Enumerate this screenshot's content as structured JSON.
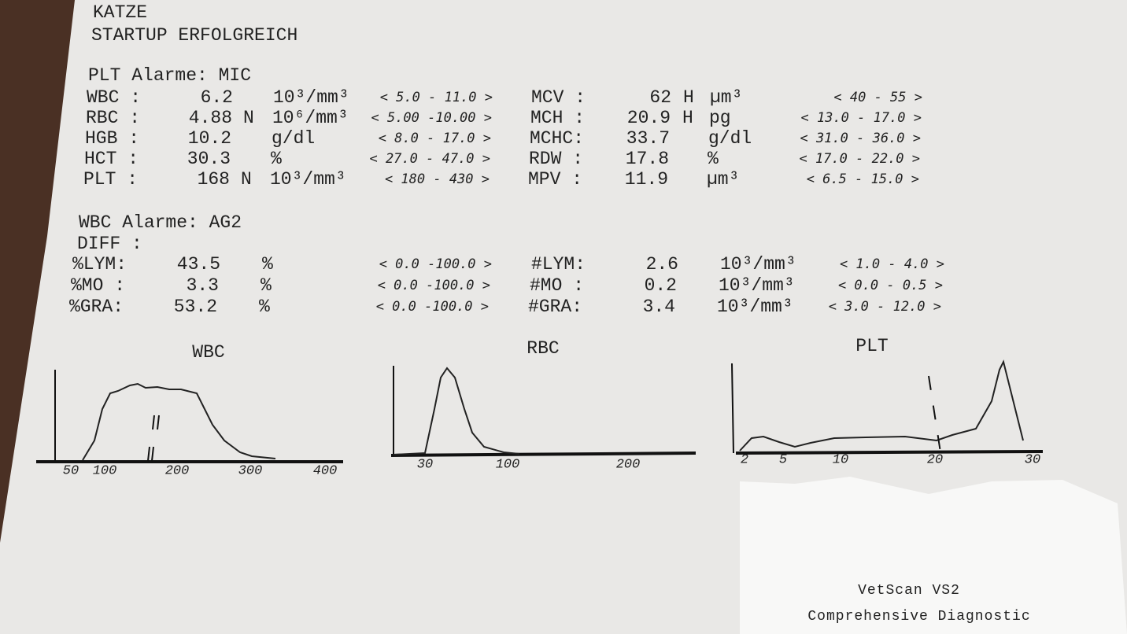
{
  "header": {
    "species": "KATZE",
    "status": "STARTUP ERFOLGREICH"
  },
  "plt_section": {
    "alarm": "PLT Alarme: MIC",
    "rows": [
      {
        "left": {
          "name": "WBC :",
          "value": "6.2",
          "unit": "10³/mm³",
          "range": "< 5.0 - 11.0 >"
        },
        "right": {
          "name": "MCV :",
          "value": "62",
          "flag": "H",
          "unit": "µm³",
          "range": "< 40 - 55 >"
        }
      },
      {
        "left": {
          "name": "RBC :",
          "value": "4.88",
          "flag": "N",
          "unit": "10⁶/mm³",
          "range": "< 5.00 -10.00 >"
        },
        "right": {
          "name": "MCH :",
          "value": "20.9",
          "flag": "H",
          "unit": "pg",
          "range": "< 13.0 - 17.0 >"
        }
      },
      {
        "left": {
          "name": "HGB :",
          "value": "10.2",
          "unit": "g/dl",
          "range": "< 8.0 - 17.0 >"
        },
        "right": {
          "name": "MCHC:",
          "value": "33.7",
          "unit": "g/dl",
          "range": "< 31.0 - 36.0 >"
        }
      },
      {
        "left": {
          "name": "HCT :",
          "value": "30.3",
          "unit": "%",
          "range": "< 27.0 - 47.0 >"
        },
        "right": {
          "name": "RDW :",
          "value": "17.8",
          "unit": "%",
          "range": "< 17.0 - 22.0 >"
        }
      },
      {
        "left": {
          "name": "PLT :",
          "value": "168",
          "flag": "N",
          "unit": "10³/mm³",
          "range": "< 180 - 430 >"
        },
        "right": {
          "name": "MPV :",
          "value": "11.9",
          "unit": "µm³",
          "range": "< 6.5 - 15.0 >"
        }
      }
    ]
  },
  "wbc_section": {
    "alarm": "WBC Alarme: AG2",
    "diff": "DIFF :",
    "rows": [
      {
        "left": {
          "name": "%LYM:",
          "value": "43.5",
          "unit": "%",
          "range": "< 0.0 -100.0 >"
        },
        "right": {
          "name": "#LYM:",
          "value": "2.6",
          "unit": "10³/mm³",
          "range": "< 1.0 - 4.0 >"
        }
      },
      {
        "left": {
          "name": "%MO :",
          "value": "3.3",
          "unit": "%",
          "range": "< 0.0 -100.0 >"
        },
        "right": {
          "name": "#MO :",
          "value": "0.2",
          "unit": "10³/mm³",
          "range": "< 0.0 - 0.5 >"
        }
      },
      {
        "left": {
          "name": "%GRA:",
          "value": "53.2",
          "unit": "%",
          "range": "< 0.0 -100.0 >"
        },
        "right": {
          "name": "#GRA:",
          "value": "3.4",
          "unit": "10³/mm³",
          "range": "< 3.0 - 12.0 >"
        }
      }
    ]
  },
  "histograms": [
    {
      "title": "WBC",
      "ticks": [
        "50",
        "100",
        "200",
        "300",
        "400"
      ]
    },
    {
      "title": "RBC",
      "ticks": [
        "30",
        "100",
        "200"
      ]
    },
    {
      "title": "PLT",
      "ticks": [
        "2",
        "5",
        "10",
        "20",
        "30"
      ]
    }
  ],
  "footer": {
    "device": "VetScan VS2",
    "subtitle": "Comprehensive Diagnostic"
  }
}
